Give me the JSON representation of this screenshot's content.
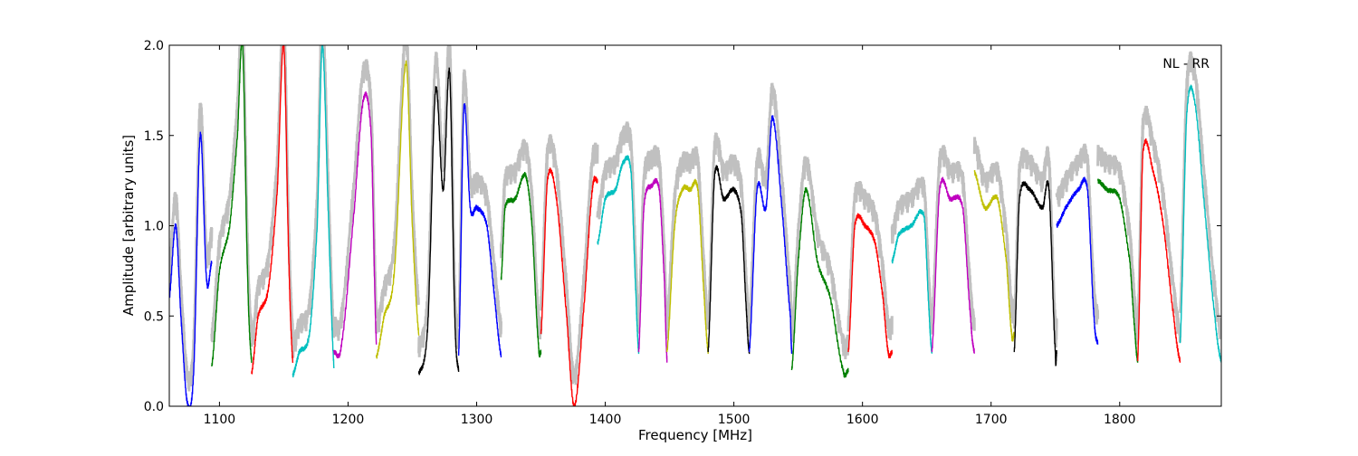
{
  "chart_data": {
    "type": "line",
    "title": "",
    "annotation": "NL - RR",
    "xlabel": "Frequency [MHz]",
    "ylabel": "Amplitude [arbitrary units]",
    "xlim": [
      1061,
      1879
    ],
    "ylim": [
      0.0,
      2.0
    ],
    "xticks": [
      1100,
      1200,
      1300,
      1400,
      1500,
      1600,
      1700,
      1800
    ],
    "xtick_labels": [
      "1100",
      "1200",
      "1300",
      "1400",
      "1500",
      "1600",
      "1700",
      "1800"
    ],
    "yticks": [
      0.0,
      0.5,
      1.0,
      1.5,
      2.0
    ],
    "ytick_labels": [
      "0.0",
      "0.5",
      "1.0",
      "1.5",
      "2.0"
    ],
    "grid": false,
    "reference_color": "#c0c0c0",
    "segments": [
      {
        "color": "#0000ff",
        "points": [
          [
            1061,
            0.6
          ],
          [
            1066,
            1.0
          ],
          [
            1070,
            0.5
          ],
          [
            1075,
            0.02
          ],
          [
            1080,
            0.2
          ],
          [
            1085,
            1.5
          ],
          [
            1090,
            0.7
          ],
          [
            1094,
            0.8
          ]
        ]
      },
      {
        "color": "#008000",
        "points": [
          [
            1094,
            0.22
          ],
          [
            1100,
            0.75
          ],
          [
            1108,
            1.0
          ],
          [
            1114,
            1.5
          ],
          [
            1118,
            2.0
          ],
          [
            1122,
            0.7
          ],
          [
            1125,
            0.25
          ]
        ]
      },
      {
        "color": "#ff0000",
        "points": [
          [
            1125,
            0.18
          ],
          [
            1130,
            0.5
          ],
          [
            1138,
            0.65
          ],
          [
            1145,
            1.2
          ],
          [
            1150,
            2.0
          ],
          [
            1154,
            0.8
          ],
          [
            1157,
            0.25
          ]
        ]
      },
      {
        "color": "#00bfbf",
        "points": [
          [
            1157,
            0.17
          ],
          [
            1162,
            0.3
          ],
          [
            1170,
            0.4
          ],
          [
            1176,
            1.0
          ],
          [
            1180,
            2.0
          ],
          [
            1185,
            1.0
          ],
          [
            1189,
            0.22
          ]
        ]
      },
      {
        "color": "#bf00bf",
        "points": [
          [
            1189,
            0.3
          ],
          [
            1195,
            0.35
          ],
          [
            1205,
            1.1
          ],
          [
            1212,
            1.7
          ],
          [
            1218,
            1.5
          ],
          [
            1222,
            0.35
          ]
        ]
      },
      {
        "color": "#bfbf00",
        "points": [
          [
            1222,
            0.27
          ],
          [
            1228,
            0.5
          ],
          [
            1236,
            0.75
          ],
          [
            1245,
            1.9
          ],
          [
            1250,
            1.0
          ],
          [
            1255,
            0.4
          ]
        ]
      },
      {
        "color": "#000000",
        "points": [
          [
            1255,
            0.18
          ],
          [
            1262,
            0.45
          ],
          [
            1268,
            1.75
          ],
          [
            1274,
            1.2
          ],
          [
            1279,
            1.85
          ],
          [
            1283,
            0.5
          ],
          [
            1286,
            0.2
          ]
        ]
      },
      {
        "color": "#0000ff",
        "points": [
          [
            1286,
            0.28
          ],
          [
            1290,
            1.65
          ],
          [
            1295,
            1.1
          ],
          [
            1300,
            1.1
          ],
          [
            1308,
            1.0
          ],
          [
            1314,
            0.6
          ],
          [
            1319,
            0.28
          ]
        ]
      },
      {
        "color": "#008000",
        "points": [
          [
            1319,
            0.7
          ],
          [
            1322,
            1.1
          ],
          [
            1330,
            1.15
          ],
          [
            1338,
            1.28
          ],
          [
            1343,
            1.0
          ],
          [
            1348,
            0.35
          ],
          [
            1350,
            0.3
          ]
        ]
      },
      {
        "color": "#ff0000",
        "points": [
          [
            1350,
            0.4
          ],
          [
            1355,
            1.25
          ],
          [
            1362,
            1.15
          ],
          [
            1370,
            0.5
          ],
          [
            1376,
            0.0
          ],
          [
            1384,
            0.6
          ],
          [
            1390,
            1.2
          ],
          [
            1394,
            1.25
          ]
        ]
      },
      {
        "color": "#00bfbf",
        "points": [
          [
            1394,
            0.9
          ],
          [
            1400,
            1.15
          ],
          [
            1408,
            1.2
          ],
          [
            1414,
            1.35
          ],
          [
            1420,
            1.3
          ],
          [
            1424,
            0.6
          ],
          [
            1426,
            0.3
          ]
        ]
      },
      {
        "color": "#bf00bf",
        "points": [
          [
            1426,
            0.3
          ],
          [
            1430,
            1.1
          ],
          [
            1436,
            1.22
          ],
          [
            1442,
            1.2
          ],
          [
            1446,
            0.7
          ],
          [
            1448,
            0.25
          ]
        ]
      },
      {
        "color": "#bfbf00",
        "points": [
          [
            1448,
            0.3
          ],
          [
            1454,
            1.0
          ],
          [
            1460,
            1.2
          ],
          [
            1466,
            1.2
          ],
          [
            1472,
            1.2
          ],
          [
            1477,
            0.6
          ],
          [
            1480,
            0.3
          ]
        ]
      },
      {
        "color": "#000000",
        "points": [
          [
            1480,
            0.3
          ],
          [
            1485,
            1.28
          ],
          [
            1492,
            1.15
          ],
          [
            1500,
            1.2
          ],
          [
            1506,
            1.05
          ],
          [
            1510,
            0.5
          ],
          [
            1512,
            0.3
          ]
        ]
      },
      {
        "color": "#0000ff",
        "points": [
          [
            1512,
            0.3
          ],
          [
            1518,
            1.2
          ],
          [
            1525,
            1.1
          ],
          [
            1530,
            1.6
          ],
          [
            1538,
            1.05
          ],
          [
            1544,
            0.5
          ],
          [
            1545,
            0.3
          ]
        ]
      },
      {
        "color": "#008000",
        "points": [
          [
            1545,
            0.2
          ],
          [
            1550,
            0.8
          ],
          [
            1556,
            1.2
          ],
          [
            1565,
            0.8
          ],
          [
            1575,
            0.6
          ],
          [
            1585,
            0.2
          ],
          [
            1589,
            0.2
          ]
        ]
      },
      {
        "color": "#ff0000",
        "points": [
          [
            1589,
            0.3
          ],
          [
            1594,
            1.0
          ],
          [
            1602,
            1.0
          ],
          [
            1610,
            0.9
          ],
          [
            1616,
            0.6
          ],
          [
            1620,
            0.3
          ],
          [
            1623,
            0.3
          ]
        ]
      },
      {
        "color": "#00bfbf",
        "points": [
          [
            1623,
            0.8
          ],
          [
            1628,
            0.95
          ],
          [
            1638,
            1.0
          ],
          [
            1648,
            1.05
          ],
          [
            1652,
            0.5
          ],
          [
            1654,
            0.3
          ]
        ]
      },
      {
        "color": "#bf00bf",
        "points": [
          [
            1654,
            0.3
          ],
          [
            1660,
            1.2
          ],
          [
            1668,
            1.15
          ],
          [
            1678,
            1.1
          ],
          [
            1684,
            0.5
          ],
          [
            1687,
            0.3
          ]
        ]
      },
      {
        "color": "#bfbf00",
        "points": [
          [
            1687,
            1.3
          ],
          [
            1695,
            1.1
          ],
          [
            1705,
            1.15
          ],
          [
            1712,
            0.8
          ],
          [
            1716,
            0.4
          ],
          [
            1718,
            0.4
          ]
        ]
      },
      {
        "color": "#000000",
        "points": [
          [
            1718,
            0.3
          ],
          [
            1722,
            1.15
          ],
          [
            1730,
            1.2
          ],
          [
            1740,
            1.1
          ],
          [
            1745,
            1.2
          ],
          [
            1750,
            0.3
          ],
          [
            1751,
            0.3
          ]
        ]
      },
      {
        "color": "#0000ff",
        "points": [
          [
            1751,
            1.0
          ],
          [
            1758,
            1.1
          ],
          [
            1768,
            1.2
          ],
          [
            1775,
            1.2
          ],
          [
            1780,
            0.5
          ],
          [
            1783,
            0.35
          ]
        ]
      },
      {
        "color": "#008000",
        "points": [
          [
            1783,
            1.25
          ],
          [
            1790,
            1.2
          ],
          [
            1800,
            1.15
          ],
          [
            1808,
            0.8
          ],
          [
            1812,
            0.4
          ],
          [
            1814,
            0.25
          ]
        ]
      },
      {
        "color": "#ff0000",
        "points": [
          [
            1814,
            0.25
          ],
          [
            1818,
            1.4
          ],
          [
            1826,
            1.3
          ],
          [
            1834,
            1.0
          ],
          [
            1842,
            0.5
          ],
          [
            1847,
            0.25
          ]
        ]
      },
      {
        "color": "#00bfbf",
        "points": [
          [
            1847,
            0.35
          ],
          [
            1852,
            1.6
          ],
          [
            1858,
            1.7
          ],
          [
            1866,
            1.1
          ],
          [
            1874,
            0.5
          ],
          [
            1879,
            0.25
          ]
        ]
      }
    ]
  }
}
